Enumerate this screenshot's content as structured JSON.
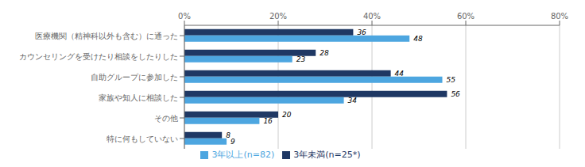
{
  "chart_data": {
    "type": "bar",
    "orientation": "horizontal",
    "categories": [
      "医療機関（精神科以外も含む）に通った",
      "カウンセリングを受けたり相談をしたりした",
      "自助グループに参加した",
      "家族や知人に相談した",
      "その他",
      "特に何もしていない"
    ],
    "series": [
      {
        "name": "3年未満(n=25*)",
        "color": "#1F3864",
        "values": [
          36,
          28,
          44,
          56,
          20,
          8
        ]
      },
      {
        "name": "3年以上(n=82)",
        "color": "#4DA6E0",
        "values": [
          48,
          23,
          55,
          34,
          16,
          9
        ]
      }
    ],
    "xlim": [
      0,
      80
    ],
    "xticks": [
      {
        "value": 0,
        "label": "0%"
      },
      {
        "value": 20,
        "label": "20%"
      },
      {
        "value": 40,
        "label": "40%"
      },
      {
        "value": 60,
        "label": "60%"
      },
      {
        "value": 80,
        "label": "80%"
      }
    ],
    "grid": true,
    "data_labels": true,
    "legend": "bottom"
  }
}
